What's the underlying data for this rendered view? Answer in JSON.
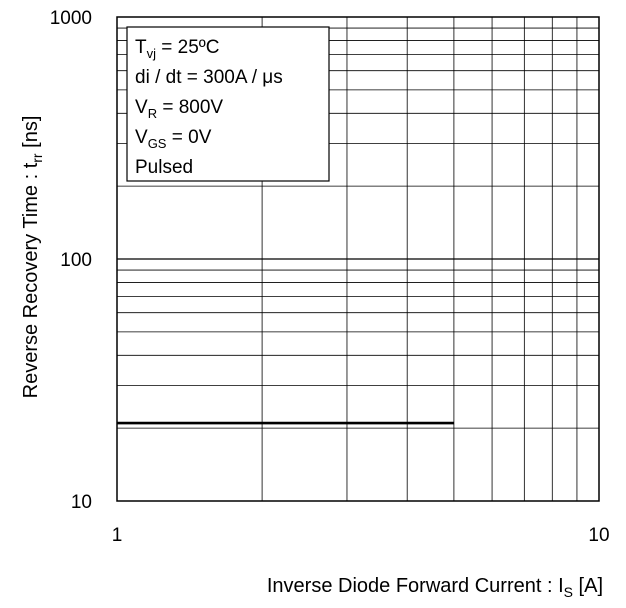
{
  "chart_data": {
    "type": "line",
    "x_scale": "log",
    "y_scale": "log",
    "xlim": [
      1,
      10
    ],
    "ylim": [
      10,
      1000
    ],
    "x_ticks": [
      "1",
      "10"
    ],
    "y_ticks": [
      "10",
      "100",
      "1000"
    ],
    "grid": true,
    "xlabel": {
      "main": "Inverse Diode  Forward Current : I",
      "sub": "S",
      "unit": " [A]"
    },
    "ylabel": {
      "main": "Reverse Recovery Time : t",
      "sub": "rr",
      "unit": " [ns]"
    },
    "series": [
      {
        "x": [
          1,
          5
        ],
        "y": [
          21,
          21
        ],
        "color": "#000000"
      }
    ],
    "annotation": {
      "placement": "top-left",
      "lines": [
        {
          "text": "T",
          "sub": "vj",
          "rest": " = 25ºC"
        },
        {
          "text": "di / dt = 300A / μs",
          "sub": "",
          "rest": ""
        },
        {
          "text": "V",
          "sub": "R",
          "rest": " = 800V"
        },
        {
          "text": "V",
          "sub": "GS",
          "rest": " = 0V"
        },
        {
          "text": "Pulsed",
          "sub": "",
          "rest": ""
        }
      ]
    }
  }
}
